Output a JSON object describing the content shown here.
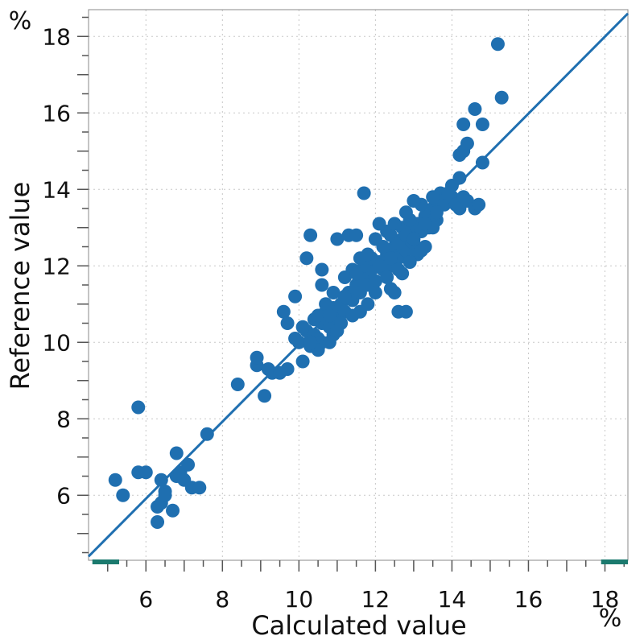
{
  "chart_data": {
    "type": "scatter",
    "xlabel": "Calculated value",
    "ylabel": "Reference value",
    "x_unit": "%",
    "y_unit": "%",
    "xlim": [
      4.5,
      18.6
    ],
    "ylim": [
      4.3,
      18.7
    ],
    "x_ticks": [
      6,
      8,
      10,
      12,
      14,
      16,
      18
    ],
    "y_ticks": [
      6,
      8,
      10,
      12,
      14,
      16,
      18
    ],
    "grid": true,
    "colors": {
      "points": "#1f6fb0",
      "line": "#1f6fb0",
      "range_marker": "#1b7a6e"
    },
    "reference_line": {
      "x": [
        4.5,
        18.6
      ],
      "y": [
        4.4,
        18.6
      ]
    },
    "range_markers": [
      [
        4.6,
        5.3
      ],
      [
        17.9,
        18.6
      ]
    ],
    "series": [
      {
        "points": [
          [
            5.2,
            6.4
          ],
          [
            5.4,
            6.0
          ],
          [
            5.8,
            8.3
          ],
          [
            5.8,
            6.6
          ],
          [
            6.0,
            6.6
          ],
          [
            6.3,
            5.3
          ],
          [
            6.3,
            5.7
          ],
          [
            6.4,
            5.8
          ],
          [
            6.4,
            6.4
          ],
          [
            6.5,
            6.1
          ],
          [
            6.5,
            6.0
          ],
          [
            6.7,
            5.6
          ],
          [
            6.8,
            7.1
          ],
          [
            6.8,
            6.5
          ],
          [
            6.9,
            6.6
          ],
          [
            7.0,
            6.4
          ],
          [
            7.1,
            6.8
          ],
          [
            7.2,
            6.2
          ],
          [
            7.4,
            6.2
          ],
          [
            7.6,
            7.6
          ],
          [
            8.4,
            8.9
          ],
          [
            8.9,
            9.4
          ],
          [
            8.9,
            9.6
          ],
          [
            9.1,
            8.6
          ],
          [
            9.2,
            9.3
          ],
          [
            9.3,
            9.2
          ],
          [
            9.5,
            9.2
          ],
          [
            9.7,
            9.3
          ],
          [
            9.6,
            10.8
          ],
          [
            9.7,
            10.5
          ],
          [
            9.9,
            11.2
          ],
          [
            9.9,
            10.1
          ],
          [
            10.0,
            10.0
          ],
          [
            10.1,
            9.5
          ],
          [
            10.2,
            10.3
          ],
          [
            10.3,
            9.9
          ],
          [
            10.4,
            10.2
          ],
          [
            10.5,
            10.1
          ],
          [
            10.6,
            10.0
          ],
          [
            10.4,
            10.6
          ],
          [
            10.6,
            10.5
          ],
          [
            10.7,
            10.8
          ],
          [
            10.8,
            10.4
          ],
          [
            10.9,
            10.9
          ],
          [
            11.0,
            10.6
          ],
          [
            11.1,
            11.0
          ],
          [
            11.2,
            10.8
          ],
          [
            11.3,
            11.3
          ],
          [
            11.4,
            11.1
          ],
          [
            11.5,
            11.5
          ],
          [
            11.6,
            11.3
          ],
          [
            11.7,
            11.7
          ],
          [
            11.8,
            11.5
          ],
          [
            11.9,
            11.9
          ],
          [
            12.0,
            11.6
          ],
          [
            12.1,
            12.1
          ],
          [
            12.2,
            11.9
          ],
          [
            12.3,
            12.3
          ],
          [
            12.4,
            12.0
          ],
          [
            12.5,
            12.5
          ],
          [
            12.6,
            12.2
          ],
          [
            12.7,
            12.7
          ],
          [
            12.8,
            12.4
          ],
          [
            12.9,
            12.9
          ],
          [
            13.0,
            12.6
          ],
          [
            13.1,
            13.1
          ],
          [
            13.2,
            12.9
          ],
          [
            13.3,
            13.3
          ],
          [
            13.4,
            13.0
          ],
          [
            13.5,
            13.5
          ],
          [
            13.6,
            13.2
          ],
          [
            13.7,
            13.7
          ],
          [
            13.8,
            13.6
          ],
          [
            14.0,
            13.8
          ],
          [
            14.1,
            13.6
          ],
          [
            14.2,
            13.5
          ],
          [
            14.3,
            13.8
          ],
          [
            14.4,
            13.7
          ],
          [
            14.6,
            13.5
          ],
          [
            14.7,
            13.6
          ],
          [
            10.2,
            12.2
          ],
          [
            10.3,
            12.8
          ],
          [
            10.6,
            11.9
          ],
          [
            10.6,
            11.5
          ],
          [
            11.0,
            12.7
          ],
          [
            11.3,
            12.8
          ],
          [
            11.5,
            12.8
          ],
          [
            11.7,
            13.9
          ],
          [
            12.1,
            13.1
          ],
          [
            11.2,
            11.7
          ],
          [
            11.6,
            10.8
          ],
          [
            12.5,
            11.3
          ],
          [
            12.6,
            10.8
          ],
          [
            12.8,
            10.8
          ],
          [
            12.4,
            11.4
          ],
          [
            12.7,
            11.8
          ],
          [
            13.1,
            12.3
          ],
          [
            13.3,
            12.5
          ],
          [
            13.5,
            13.0
          ],
          [
            13.7,
            13.9
          ],
          [
            14.0,
            14.1
          ],
          [
            14.2,
            14.3
          ],
          [
            14.2,
            14.9
          ],
          [
            14.3,
            15.0
          ],
          [
            14.3,
            15.7
          ],
          [
            14.4,
            15.2
          ],
          [
            14.6,
            16.1
          ],
          [
            14.8,
            15.7
          ],
          [
            14.8,
            14.7
          ],
          [
            15.2,
            17.8
          ],
          [
            15.3,
            16.4
          ],
          [
            10.9,
            10.2
          ],
          [
            11.1,
            10.5
          ],
          [
            11.4,
            10.7
          ],
          [
            11.8,
            11.0
          ],
          [
            12.0,
            11.3
          ],
          [
            12.3,
            11.7
          ],
          [
            12.6,
            11.9
          ],
          [
            12.9,
            12.1
          ],
          [
            13.2,
            12.4
          ],
          [
            10.5,
            9.8
          ],
          [
            10.8,
            10.0
          ],
          [
            11.0,
            10.3
          ],
          [
            11.7,
            12.0
          ],
          [
            11.9,
            12.2
          ],
          [
            12.2,
            12.5
          ],
          [
            12.4,
            12.8
          ],
          [
            12.7,
            13.0
          ],
          [
            12.9,
            13.2
          ],
          [
            13.2,
            13.6
          ],
          [
            13.5,
            13.8
          ],
          [
            13.9,
            13.9
          ],
          [
            11.4,
            11.9
          ],
          [
            11.6,
            12.2
          ],
          [
            12.0,
            12.7
          ],
          [
            12.3,
            12.9
          ],
          [
            12.5,
            13.1
          ],
          [
            12.8,
            13.4
          ],
          [
            13.0,
            13.7
          ],
          [
            10.7,
            11.0
          ],
          [
            10.9,
            11.3
          ],
          [
            11.2,
            11.2
          ],
          [
            11.5,
            11.8
          ],
          [
            11.8,
            12.3
          ],
          [
            12.1,
            12.0
          ],
          [
            12.4,
            12.2
          ],
          [
            12.6,
            12.6
          ],
          [
            12.8,
            12.8
          ],
          [
            13.0,
            12.7
          ],
          [
            13.3,
            13.1
          ],
          [
            13.6,
            13.4
          ],
          [
            10.1,
            10.4
          ],
          [
            10.3,
            10.0
          ],
          [
            10.5,
            10.7
          ],
          [
            10.8,
            10.7
          ]
        ]
      }
    ]
  }
}
